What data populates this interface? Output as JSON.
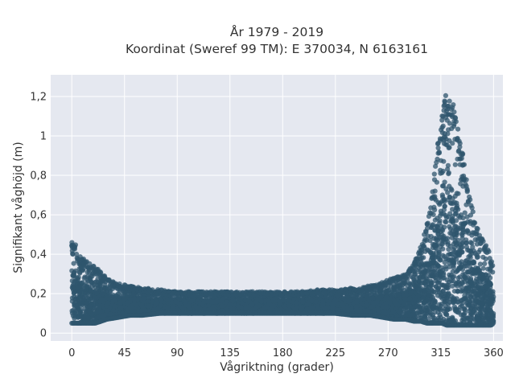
{
  "chart_data": {
    "type": "scatter",
    "title": "År 1979 - 2019",
    "subtitle": "Koordinat (Sweref 99 TM): E 370034, N 6163161",
    "xlabel": "Vågriktning (grader)",
    "ylabel": "Signifikant våghöjd (m)",
    "xlim": [
      -18,
      368
    ],
    "ylim": [
      -0.04,
      1.31
    ],
    "x_ticks": [
      0,
      45,
      90,
      135,
      180,
      225,
      270,
      315,
      360
    ],
    "x_tick_labels": [
      "0",
      "45",
      "90",
      "135",
      "180",
      "225",
      "270",
      "315",
      "360"
    ],
    "y_ticks": [
      0,
      0.2,
      0.4,
      0.6,
      0.8,
      1.0,
      1.2
    ],
    "y_tick_labels": [
      "0",
      "0,2",
      "0,4",
      "0,6",
      "0,8",
      "1",
      "1,2"
    ],
    "grid": true,
    "marker_color": "#2f566e",
    "background_color": "#e5e8f0",
    "envelope": {
      "x": [
        0,
        2,
        5,
        10,
        15,
        20,
        25,
        30,
        40,
        50,
        60,
        75,
        90,
        105,
        120,
        135,
        150,
        165,
        180,
        195,
        210,
        225,
        240,
        255,
        265,
        275,
        285,
        292,
        298,
        303,
        308,
        312,
        316,
        320,
        324,
        328,
        332,
        336,
        340,
        345,
        350,
        355,
        358,
        360
      ],
      "y_min": [
        0.05,
        0.05,
        0.05,
        0.05,
        0.05,
        0.05,
        0.06,
        0.07,
        0.08,
        0.09,
        0.09,
        0.1,
        0.1,
        0.1,
        0.1,
        0.1,
        0.1,
        0.1,
        0.1,
        0.1,
        0.1,
        0.1,
        0.09,
        0.09,
        0.08,
        0.07,
        0.07,
        0.06,
        0.06,
        0.05,
        0.05,
        0.05,
        0.05,
        0.04,
        0.04,
        0.04,
        0.04,
        0.04,
        0.04,
        0.04,
        0.04,
        0.04,
        0.04,
        0.05
      ],
      "y_max": [
        0.46,
        0.48,
        0.4,
        0.38,
        0.36,
        0.34,
        0.31,
        0.28,
        0.25,
        0.24,
        0.23,
        0.22,
        0.21,
        0.21,
        0.21,
        0.21,
        0.21,
        0.21,
        0.21,
        0.21,
        0.22,
        0.22,
        0.23,
        0.24,
        0.26,
        0.28,
        0.3,
        0.35,
        0.45,
        0.55,
        0.72,
        0.95,
        1.1,
        1.24,
        1.2,
        1.1,
        0.98,
        0.82,
        0.68,
        0.55,
        0.48,
        0.44,
        0.38,
        0.32
      ]
    }
  }
}
